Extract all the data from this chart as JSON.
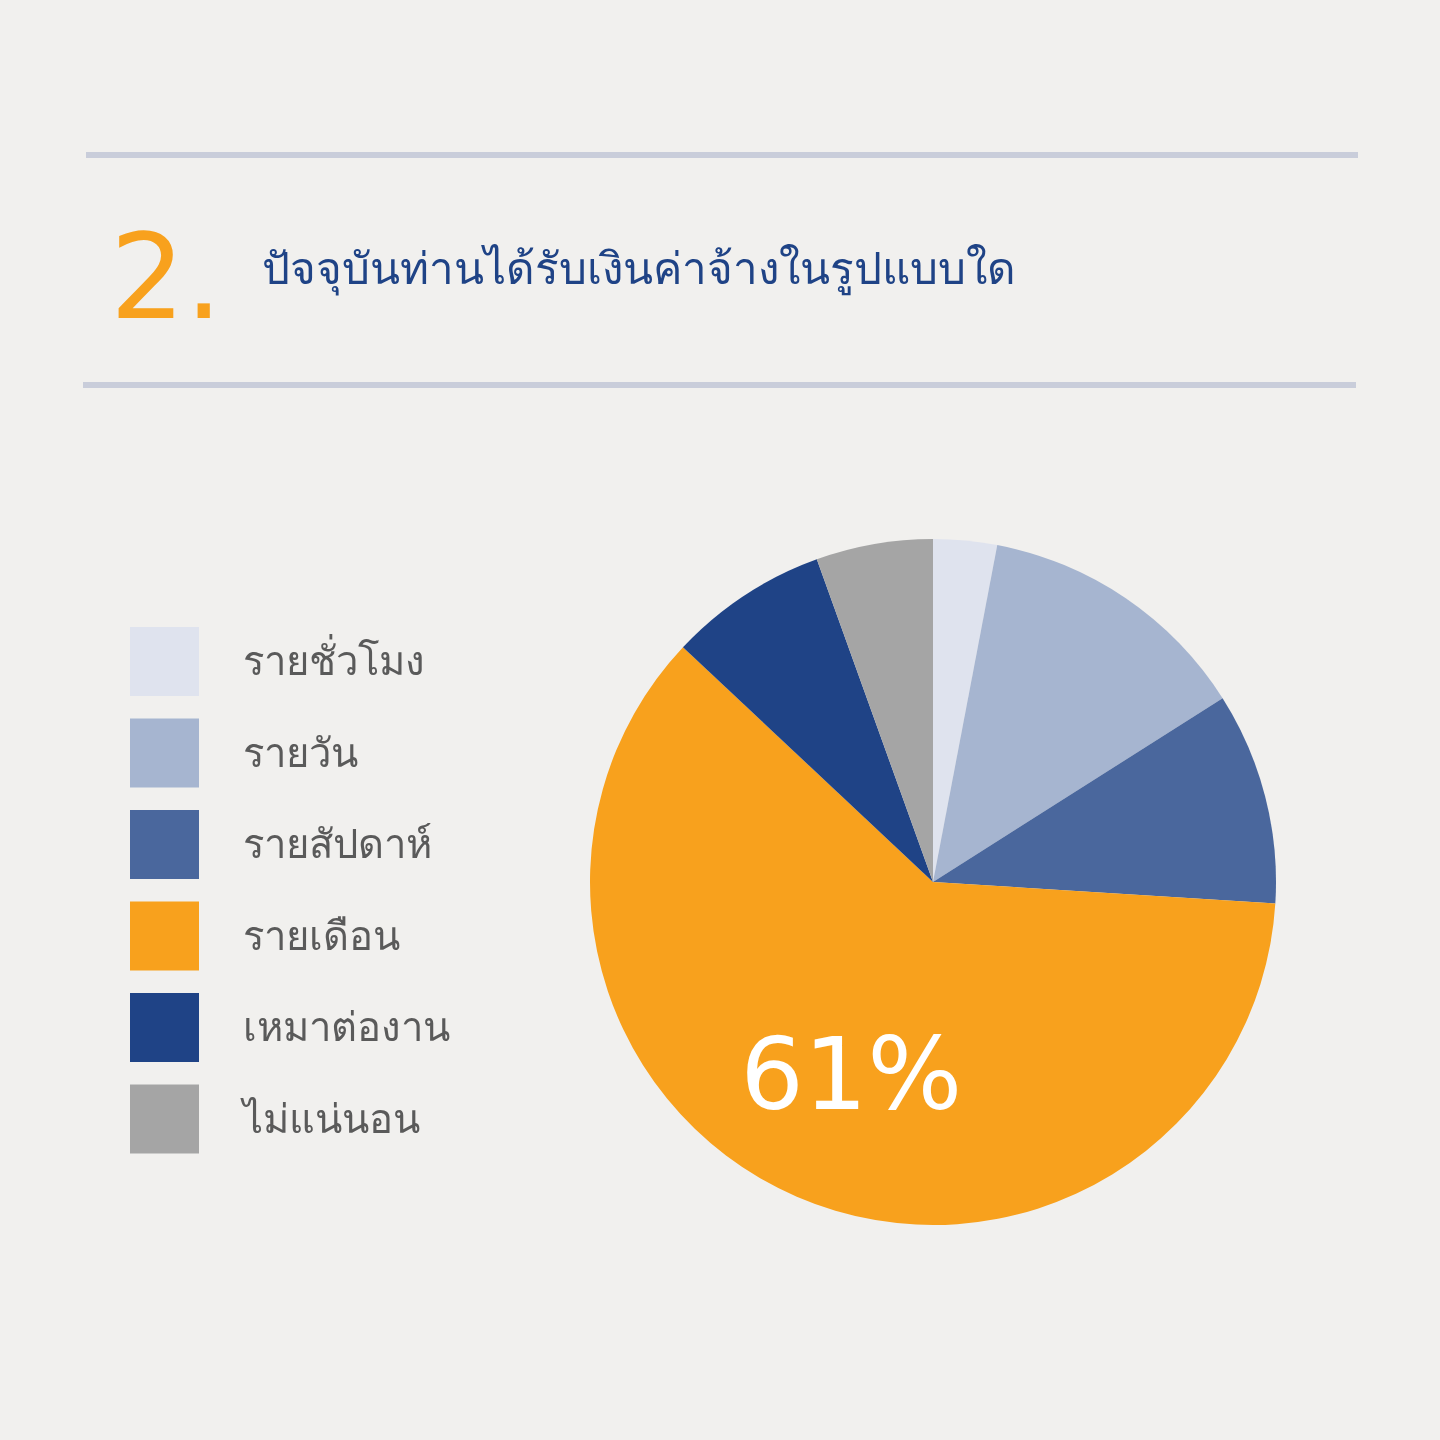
{
  "chart_data": {
    "type": "pie",
    "title": "ปัจจุบันท่านได้รับเงินค่าจ้างในรูปแบบใด",
    "annotations": [
      "2."
    ],
    "categories": [
      "รายชั่วโมง",
      "รายวัน",
      "รายสัปดาห์",
      "รายเดือน",
      "เหมาต่องาน",
      "ไม่แน่นอน"
    ],
    "values": [
      3,
      13,
      10,
      61,
      7.5,
      5.5
    ],
    "colors": [
      "#dfe3ee",
      "#a6b5d0",
      "#4a679d",
      "#f8a11d",
      "#1f4386",
      "#a5a5a5"
    ],
    "value_labels": [
      null,
      null,
      null,
      "61%",
      null,
      null
    ],
    "legend": "left"
  }
}
